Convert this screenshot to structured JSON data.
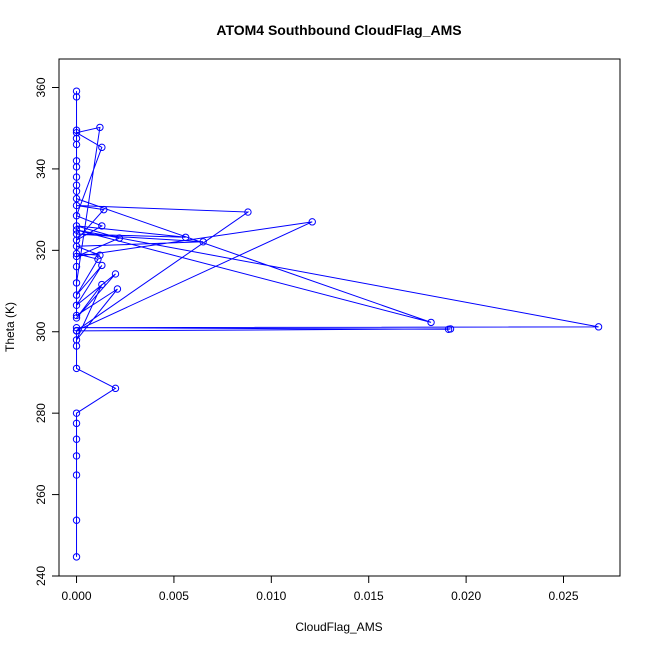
{
  "chart_data": {
    "type": "line",
    "title": "ATOM4 Southbound CloudFlag_AMS",
    "xlabel": "CloudFlag_AMS",
    "ylabel": "Theta (K)",
    "xlim": [
      -0.0009,
      0.0279
    ],
    "ylim": [
      240,
      367
    ],
    "xticks": [
      0.0,
      0.005,
      0.01,
      0.015,
      0.02,
      0.025
    ],
    "xtick_labels": [
      "0.000",
      "0.005",
      "0.010",
      "0.015",
      "0.020",
      "0.025"
    ],
    "yticks": [
      240,
      260,
      280,
      300,
      320,
      340,
      360
    ],
    "ytick_labels": [
      "240",
      "260",
      "280",
      "300",
      "320",
      "340",
      "360"
    ],
    "grid": false,
    "series": [
      {
        "color": "#0000ff",
        "marker": "open-circle",
        "points": [
          [
            0.0,
            244.7
          ],
          [
            0.0,
            253.7
          ],
          [
            0.0,
            264.8
          ],
          [
            0.0,
            269.5
          ],
          [
            0.0,
            273.6
          ],
          [
            0.0,
            277.5
          ],
          [
            0.0,
            280.0
          ],
          [
            0.002,
            286.1
          ],
          [
            0.0,
            291.0
          ],
          [
            0.0,
            296.5
          ],
          [
            0.0,
            300.2
          ],
          [
            0.0192,
            300.7
          ],
          [
            0.0191,
            300.6
          ],
          [
            0.0,
            301.0
          ],
          [
            0.0268,
            301.2
          ],
          [
            0.0,
            325.0
          ],
          [
            0.0182,
            302.3
          ],
          [
            0.0,
            332.7
          ],
          [
            0.0,
            304.0
          ],
          [
            0.0021,
            310.5
          ],
          [
            0.0,
            298.0
          ],
          [
            0.0013,
            311.6
          ],
          [
            0.0,
            303.4
          ],
          [
            0.002,
            314.2
          ],
          [
            0.0,
            306.5
          ],
          [
            0.0013,
            316.3
          ],
          [
            0.0,
            309.0
          ],
          [
            0.0011,
            317.8
          ],
          [
            0.0,
            319.2
          ],
          [
            0.0012,
            318.8
          ],
          [
            0.0,
            321.0
          ],
          [
            0.0065,
            322.1
          ],
          [
            0.0,
            324.0
          ],
          [
            0.0056,
            323.2
          ],
          [
            0.0,
            326.0
          ],
          [
            0.0022,
            323.0
          ],
          [
            0.0,
            318.5
          ],
          [
            0.0121,
            327.0
          ],
          [
            0.0,
            300.3
          ],
          [
            0.0088,
            329.4
          ],
          [
            0.0,
            331.0
          ],
          [
            0.0014,
            330.0
          ],
          [
            0.0,
            322.5
          ],
          [
            0.0013,
            326.0
          ],
          [
            0.0,
            328.5
          ],
          [
            0.0013,
            345.3
          ],
          [
            0.0,
            348.9
          ],
          [
            0.0012,
            350.2
          ],
          [
            0.0,
            312.0
          ],
          [
            0.0,
            316.0
          ],
          [
            0.0,
            334.5
          ],
          [
            0.0,
            336.0
          ],
          [
            0.0,
            338.0
          ],
          [
            0.0,
            340.5
          ],
          [
            0.0,
            342.0
          ],
          [
            0.0,
            346.0
          ],
          [
            0.0,
            347.5
          ],
          [
            0.0,
            349.5
          ],
          [
            0.0,
            357.7
          ],
          [
            0.0,
            359.1
          ]
        ]
      }
    ]
  }
}
